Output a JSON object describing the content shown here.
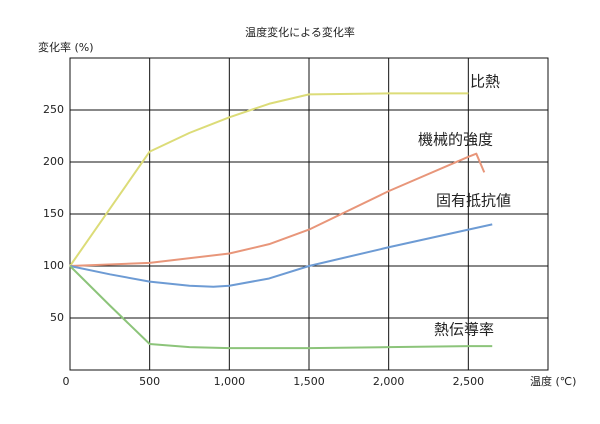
{
  "chart_data": {
    "type": "line",
    "title": "温度変化による変化率",
    "ylabel": "変化率 (%)",
    "xlabel": "温度 (℃)",
    "xlim": [
      0,
      3000
    ],
    "ylim": [
      0,
      300
    ],
    "xticks": [
      0,
      500,
      {
        "value": 1000,
        "label": "1,000"
      },
      {
        "value": 1500,
        "label": "1,500"
      },
      {
        "value": 2000,
        "label": "2,000"
      },
      {
        "value": 2500,
        "label": "2,500"
      }
    ],
    "yticks": [
      50,
      100,
      150,
      200,
      250
    ],
    "grid": true,
    "series": [
      {
        "name": "比熱",
        "color": "#dcdc78",
        "x": [
          0,
          250,
          500,
          750,
          1000,
          1250,
          1500,
          2000,
          2500
        ],
        "values": [
          100,
          155,
          210,
          228,
          243,
          256,
          265,
          266,
          266
        ]
      },
      {
        "name": "機械的強度",
        "color": "#e8967a",
        "x": [
          0,
          500,
          1000,
          1250,
          1500,
          2000,
          2500,
          2550,
          2600
        ],
        "values": [
          100,
          103,
          112,
          121,
          135,
          172,
          205,
          208,
          190
        ]
      },
      {
        "name": "固有抵抗値",
        "color": "#6d9bd4",
        "x": [
          0,
          250,
          500,
          750,
          900,
          1000,
          1250,
          1500,
          2000,
          2500,
          2650
        ],
        "values": [
          100,
          92,
          85,
          81,
          80,
          81,
          88,
          100,
          118,
          135,
          140
        ]
      },
      {
        "name": "熱伝導率",
        "color": "#8cc47a",
        "x": [
          0,
          250,
          500,
          750,
          1000,
          1500,
          2000,
          2500,
          2650
        ],
        "values": [
          100,
          62,
          25,
          22,
          21,
          21,
          22,
          23,
          23
        ]
      }
    ]
  }
}
